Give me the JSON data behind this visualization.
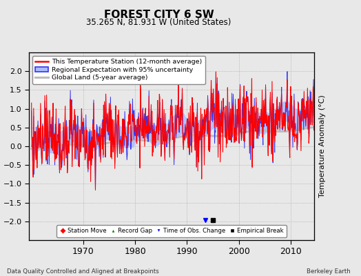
{
  "title": "FOREST CITY 6 SW",
  "subtitle": "35.265 N, 81.931 W (United States)",
  "ylabel": "Temperature Anomaly (°C)",
  "footer_left": "Data Quality Controlled and Aligned at Breakpoints",
  "footer_right": "Berkeley Earth",
  "ylim": [
    -2.5,
    2.5
  ],
  "xlim": [
    1959.5,
    2014.5
  ],
  "yticks": [
    -2.0,
    -1.5,
    -1.0,
    -0.5,
    0.0,
    0.5,
    1.0,
    1.5,
    2.0
  ],
  "xticks": [
    1970,
    1980,
    1990,
    2000,
    2010
  ],
  "station_color": "#FF0000",
  "regional_color": "#3333EE",
  "regional_fill": "#AABBFF",
  "global_color": "#BBBBBB",
  "background_color": "#E8E8E8",
  "plot_bg_color": "#E8E8E8",
  "legend_labels": [
    "This Temperature Station (12-month average)",
    "Regional Expectation with 95% uncertainty",
    "Global Land (5-year average)"
  ],
  "marker_year_tobs": 1993.5,
  "marker_year_empirical": 1995.0,
  "seed": 137
}
